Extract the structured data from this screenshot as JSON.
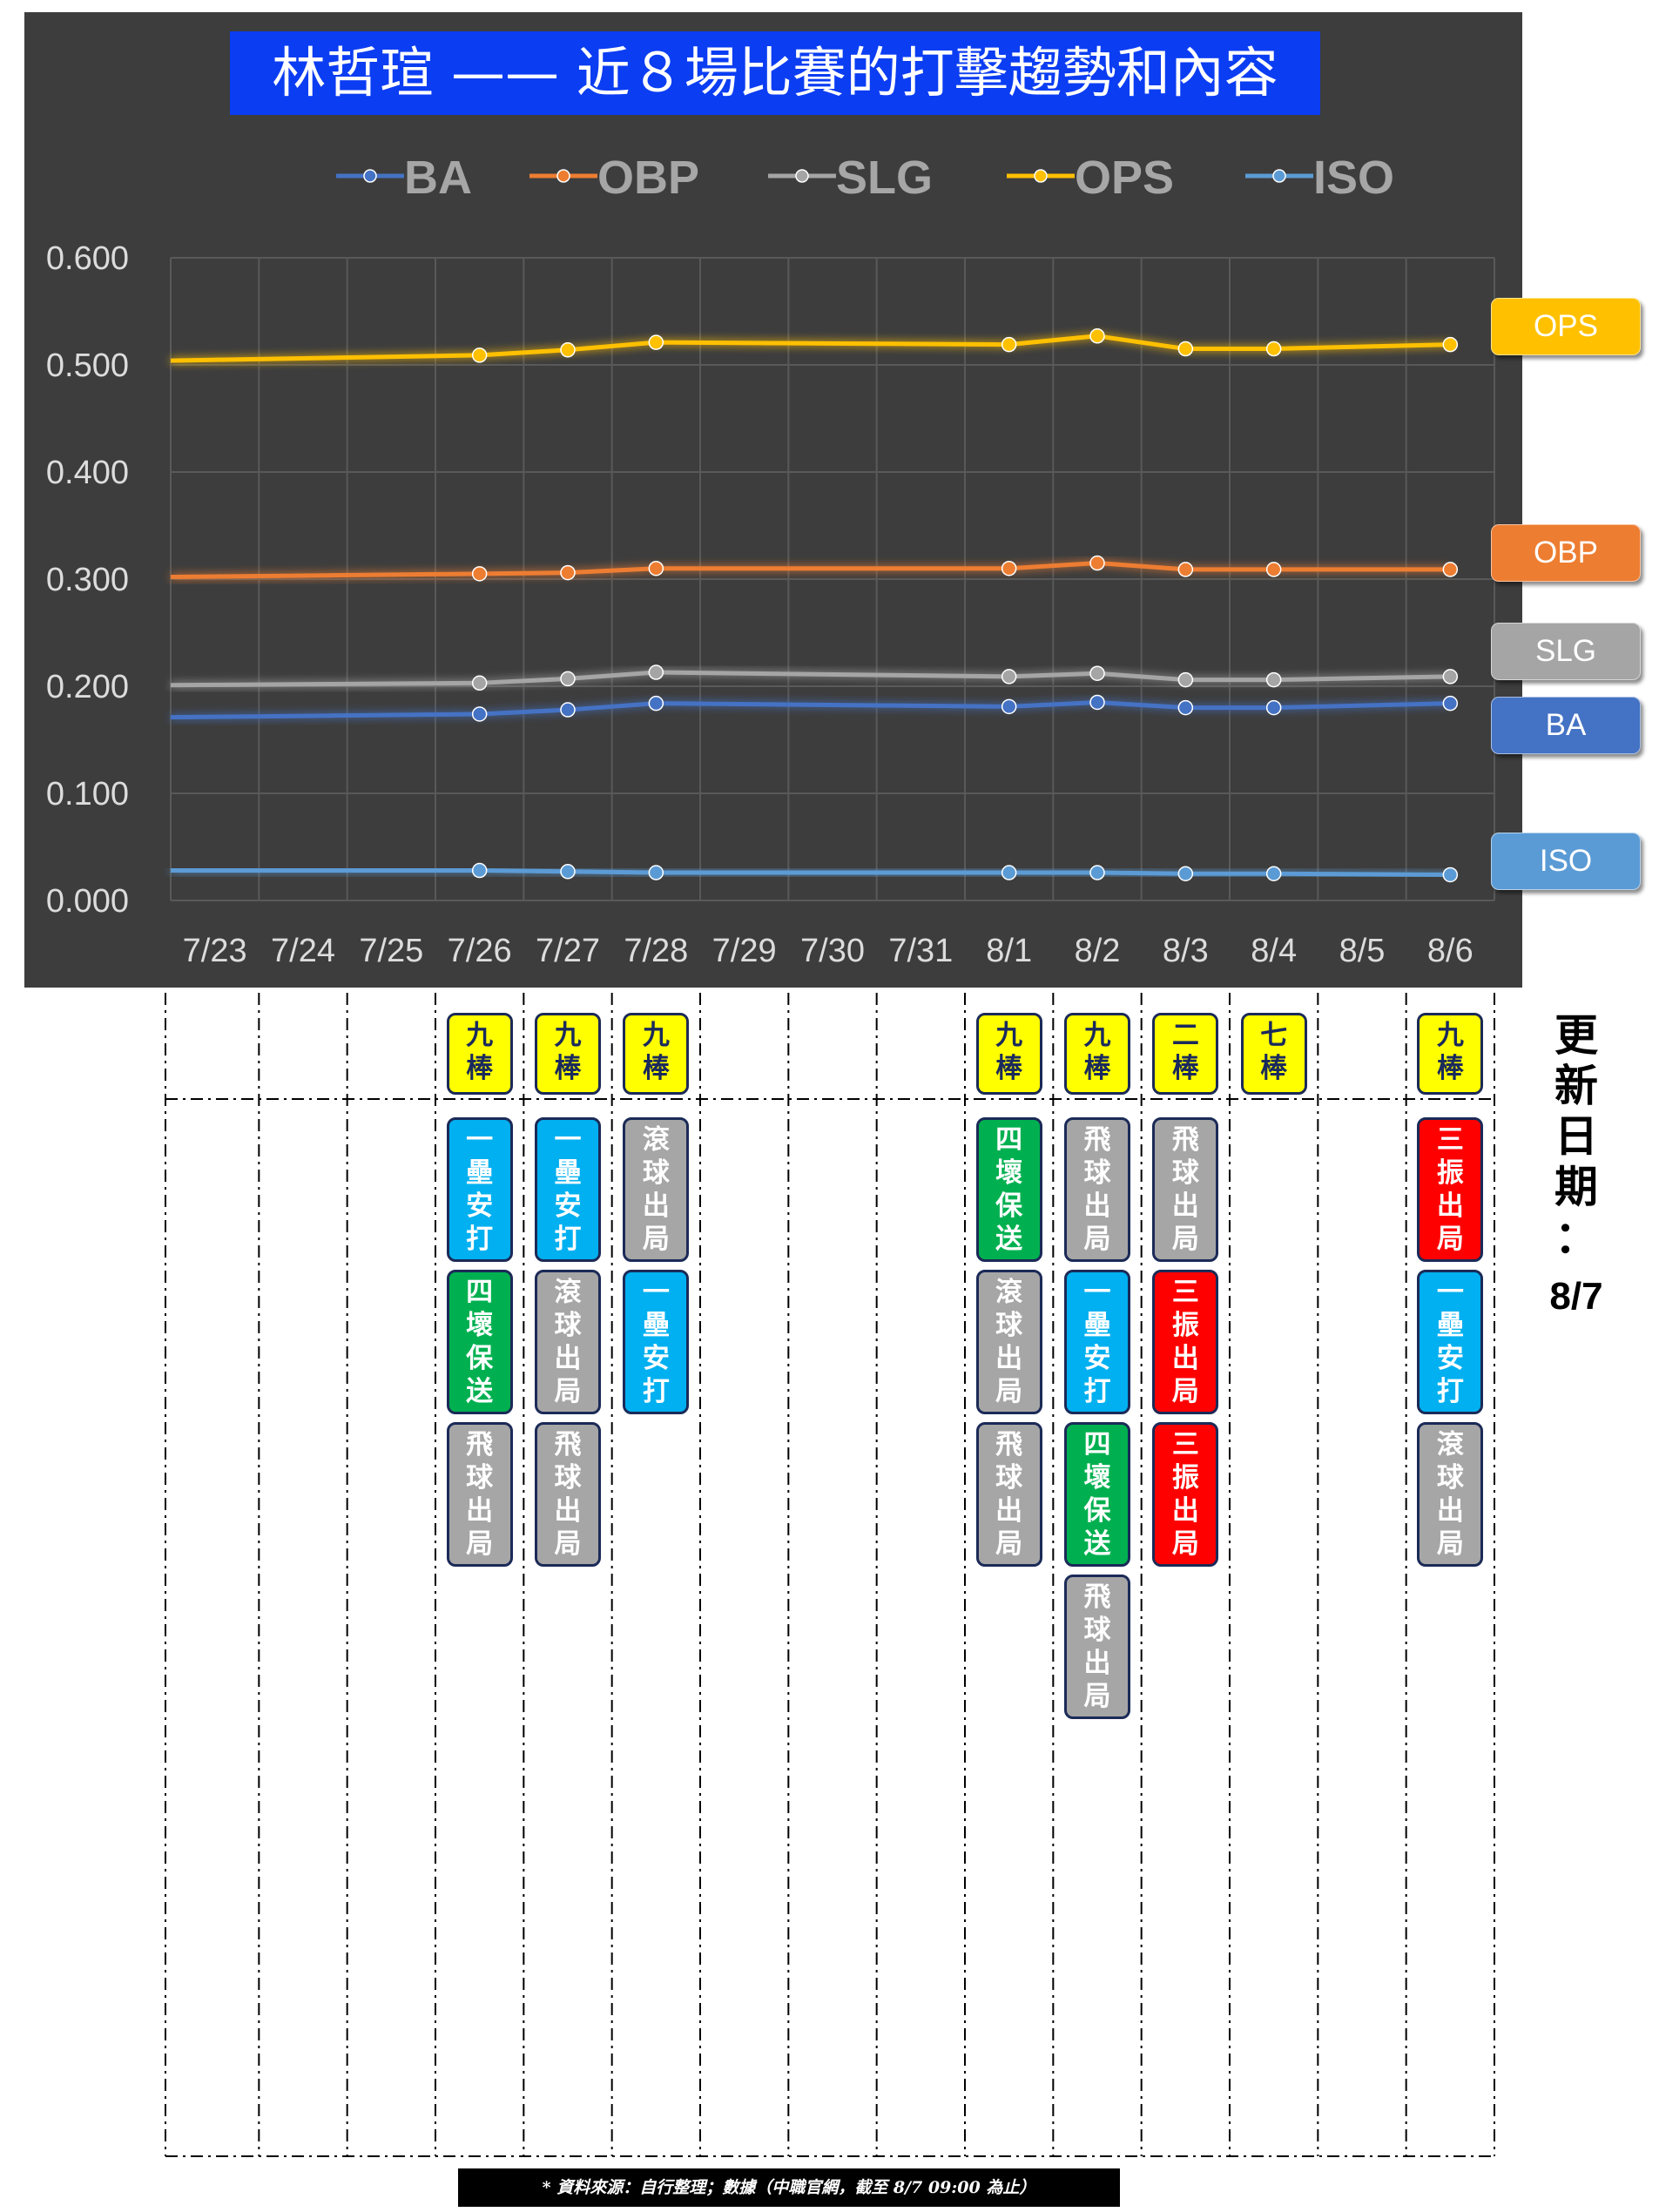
{
  "chart_data": {
    "type": "line",
    "title": "林哲瑄 —— 近８場比賽的打擊趨勢和內容",
    "categories": [
      "7/23",
      "7/24",
      "7/25",
      "7/26",
      "7/27",
      "7/28",
      "7/29",
      "7/30",
      "7/31",
      "8/1",
      "8/2",
      "8/3",
      "8/4",
      "8/5",
      "8/6"
    ],
    "ylim": [
      0,
      0.6
    ],
    "yticks": [
      "0.000",
      "0.100",
      "0.200",
      "0.300",
      "0.400",
      "0.500",
      "0.600"
    ],
    "grid": true,
    "legend_position": "top",
    "series": [
      {
        "name": "BA",
        "color": "#4472c4",
        "values": [
          0.171,
          null,
          null,
          0.174,
          0.178,
          0.184,
          null,
          null,
          null,
          0.181,
          0.185,
          0.18,
          0.18,
          null,
          0.184
        ]
      },
      {
        "name": "OBP",
        "color": "#ed7d31",
        "values": [
          0.302,
          null,
          null,
          0.305,
          0.306,
          0.31,
          null,
          null,
          null,
          0.31,
          0.315,
          0.309,
          0.309,
          null,
          0.309
        ]
      },
      {
        "name": "SLG",
        "color": "#a5a5a5",
        "values": [
          0.201,
          null,
          null,
          0.203,
          0.207,
          0.213,
          null,
          null,
          null,
          0.209,
          0.212,
          0.206,
          0.206,
          null,
          0.209
        ]
      },
      {
        "name": "OPS",
        "color": "#ffc000",
        "values": [
          0.504,
          null,
          null,
          0.509,
          0.514,
          0.521,
          null,
          null,
          null,
          0.519,
          0.527,
          0.515,
          0.515,
          null,
          0.519
        ]
      },
      {
        "name": "ISO",
        "color": "#5b9bd5",
        "values": [
          0.028,
          null,
          null,
          0.028,
          0.027,
          0.026,
          null,
          null,
          null,
          0.026,
          0.026,
          0.025,
          0.025,
          null,
          0.024
        ]
      }
    ],
    "end_labels": [
      {
        "text": "OPS",
        "color": "#ffc000"
      },
      {
        "text": "OBP",
        "color": "#ed7d31"
      },
      {
        "text": "SLG",
        "color": "#a5a5a5"
      },
      {
        "text": "BA",
        "color": "#4472c4"
      },
      {
        "text": "ISO",
        "color": "#5b9bd5"
      }
    ]
  },
  "games": [
    {
      "date": "7/26",
      "order": "九\n棒",
      "pa": [
        {
          "text": "一\n壘\n安\n打",
          "kind": "hit"
        },
        {
          "text": "四\n壞\n保\n送",
          "kind": "walk"
        },
        {
          "text": "飛\n球\n出\n局",
          "kind": "out"
        }
      ]
    },
    {
      "date": "7/27",
      "order": "九\n棒",
      "pa": [
        {
          "text": "一\n壘\n安\n打",
          "kind": "hit"
        },
        {
          "text": "滾\n球\n出\n局",
          "kind": "out"
        },
        {
          "text": "飛\n球\n出\n局",
          "kind": "out"
        }
      ]
    },
    {
      "date": "7/28",
      "order": "九\n棒",
      "pa": [
        {
          "text": "滾\n球\n出\n局",
          "kind": "out"
        },
        {
          "text": "一\n壘\n安\n打",
          "kind": "hit"
        }
      ]
    },
    {
      "date": "8/1",
      "order": "九\n棒",
      "pa": [
        {
          "text": "四\n壞\n保\n送",
          "kind": "walk"
        },
        {
          "text": "滾\n球\n出\n局",
          "kind": "out"
        },
        {
          "text": "飛\n球\n出\n局",
          "kind": "out"
        }
      ]
    },
    {
      "date": "8/2",
      "order": "九\n棒",
      "pa": [
        {
          "text": "飛\n球\n出\n局",
          "kind": "out"
        },
        {
          "text": "一\n壘\n安\n打",
          "kind": "hit"
        },
        {
          "text": "四\n壞\n保\n送",
          "kind": "walk"
        },
        {
          "text": "飛\n球\n出\n局",
          "kind": "out"
        }
      ]
    },
    {
      "date": "8/3",
      "order": "二\n棒",
      "pa": [
        {
          "text": "飛\n球\n出\n局",
          "kind": "out"
        },
        {
          "text": "三\n振\n出\n局",
          "kind": "strikeout"
        },
        {
          "text": "三\n振\n出\n局",
          "kind": "strikeout"
        }
      ]
    },
    {
      "date": "8/4",
      "order": "七\n棒",
      "pa": []
    },
    {
      "date": "8/6",
      "order": "九\n棒",
      "pa": [
        {
          "text": "三\n振\n出\n局",
          "kind": "strikeout"
        },
        {
          "text": "一\n壘\n安\n打",
          "kind": "hit"
        },
        {
          "text": "滾\n球\n出\n局",
          "kind": "out"
        }
      ]
    }
  ],
  "card_colors": {
    "order": {
      "bg": "#ffff00",
      "fg": "#1a2a5c"
    },
    "hit": {
      "bg": "#00b0f0",
      "fg": "#ffffff"
    },
    "walk": {
      "bg": "#00b050",
      "fg": "#ffffff"
    },
    "out": {
      "bg": "#a6a6a6",
      "fg": "#ffffff"
    },
    "strikeout": {
      "bg": "#ff0000",
      "fg": "#ffffff"
    }
  },
  "update_label": "更\n新\n日\n期\n：",
  "update_date": "8/7",
  "source_note": "* 資料來源：自行整理；數據（中職官網，截至 8/7 09:00 為止）"
}
